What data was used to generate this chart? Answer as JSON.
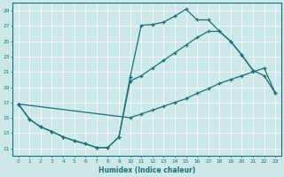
{
  "xlabel": "Humidex (Indice chaleur)",
  "xlim": [
    -0.5,
    23.5
  ],
  "ylim": [
    10,
    30
  ],
  "xticks": [
    0,
    1,
    2,
    3,
    4,
    5,
    6,
    7,
    8,
    9,
    10,
    11,
    12,
    13,
    14,
    15,
    16,
    17,
    18,
    19,
    20,
    21,
    22,
    23
  ],
  "yticks": [
    11,
    13,
    15,
    17,
    19,
    21,
    23,
    25,
    27,
    29
  ],
  "bg_color": "#cce8e8",
  "line_color": "#1a7070",
  "grid_color": "#ffffff",
  "line1_x": [
    0,
    1,
    2,
    3,
    4,
    5,
    6,
    7,
    8,
    9,
    10,
    11,
    12,
    13,
    14,
    15,
    16,
    17,
    18,
    19,
    20,
    21
  ],
  "line1_y": [
    16.8,
    14.8,
    13.8,
    13.2,
    12.5,
    12.0,
    11.6,
    11.1,
    11.1,
    12.5,
    20.3,
    27.1,
    27.2,
    27.5,
    28.3,
    29.2,
    27.8,
    27.8,
    26.3,
    25.0,
    23.2,
    21.2
  ],
  "line2_x": [
    0,
    1,
    2,
    3,
    4,
    5,
    6,
    7,
    8,
    9,
    10,
    11,
    12,
    13,
    14,
    15,
    16,
    17,
    18,
    19,
    20,
    21,
    22,
    23
  ],
  "line2_y": [
    16.8,
    14.8,
    13.8,
    13.2,
    12.5,
    12.0,
    11.6,
    11.1,
    11.1,
    12.5,
    19.8,
    20.5,
    21.5,
    22.5,
    23.5,
    24.5,
    25.5,
    26.3,
    26.3,
    25.0,
    23.2,
    21.2,
    20.5,
    18.2
  ],
  "line3_x": [
    0,
    10,
    11,
    12,
    13,
    14,
    15,
    16,
    17,
    18,
    19,
    20,
    21,
    22,
    23
  ],
  "line3_y": [
    16.8,
    15.0,
    15.5,
    16.0,
    16.5,
    17.0,
    17.5,
    18.2,
    18.8,
    19.5,
    20.0,
    20.5,
    21.0,
    21.5,
    18.2
  ]
}
